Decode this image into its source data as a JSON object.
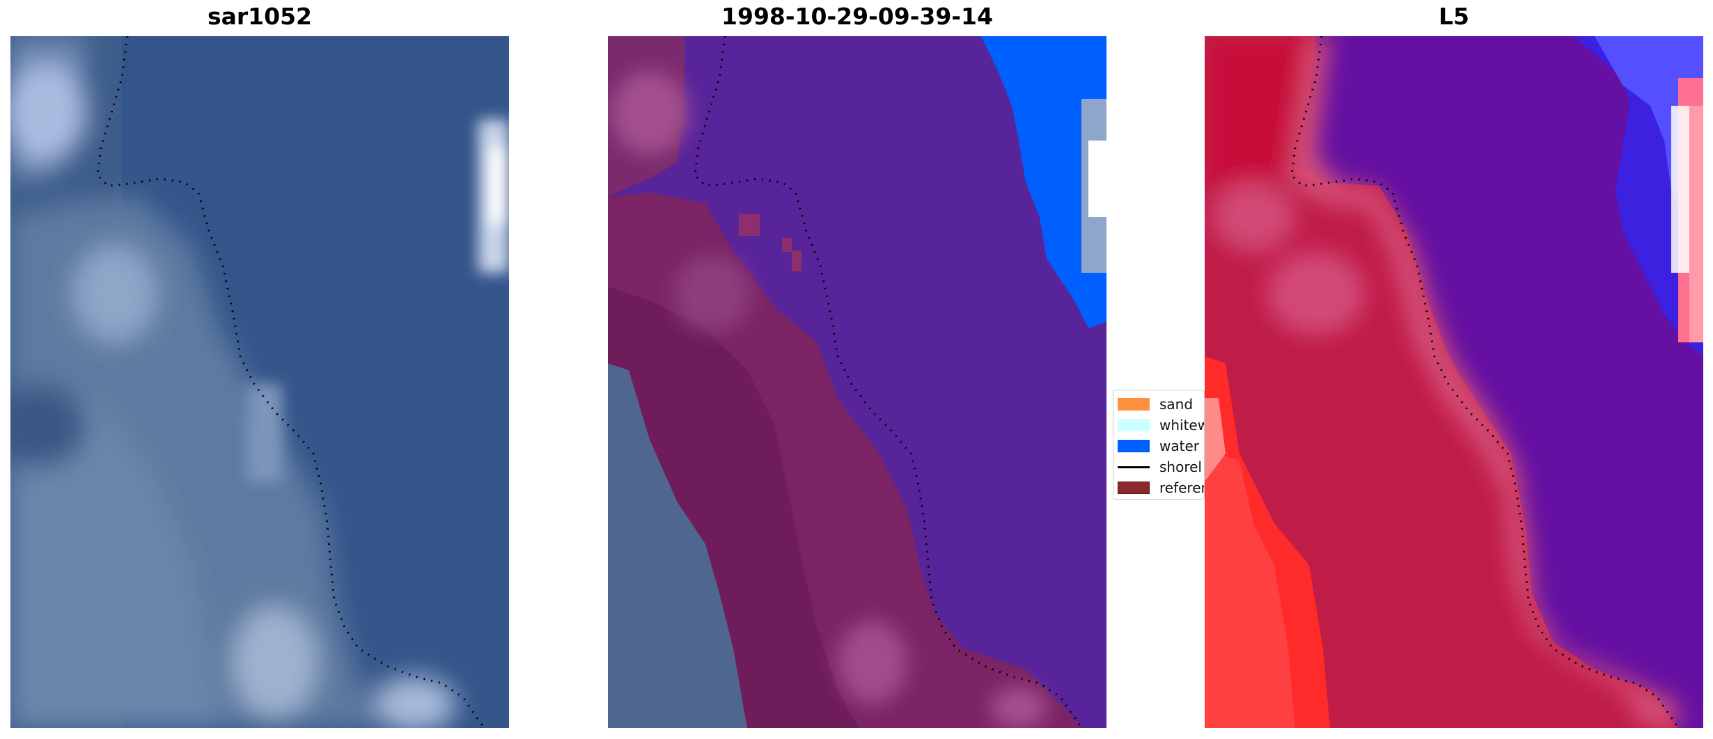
{
  "panels": [
    {
      "title": "sar1052"
    },
    {
      "title": "1998-10-29-09-39-14"
    },
    {
      "title": "L5"
    }
  ],
  "legend": {
    "placement": "between-middle-and-right-panel",
    "items": [
      {
        "label": "sand",
        "color": "#ff9040",
        "kind": "patch"
      },
      {
        "label": "whitew",
        "color": "#ccffff",
        "kind": "patch"
      },
      {
        "label": "water",
        "color": "#0060ff",
        "kind": "patch"
      },
      {
        "label": "shorel",
        "color": "#000000",
        "kind": "line"
      },
      {
        "label": "referer",
        "color": "#8b2a2e",
        "kind": "patch"
      }
    ]
  },
  "colors": {
    "rgb_base": "#3f5f8f",
    "classified_water_overlay": "#5a249a",
    "classified_land_overlay": "#6e1e5c",
    "water_class": "#0060ff",
    "l5_land": "#c41840",
    "l5_water": "#6010a0",
    "shoreline": "#000000"
  }
}
